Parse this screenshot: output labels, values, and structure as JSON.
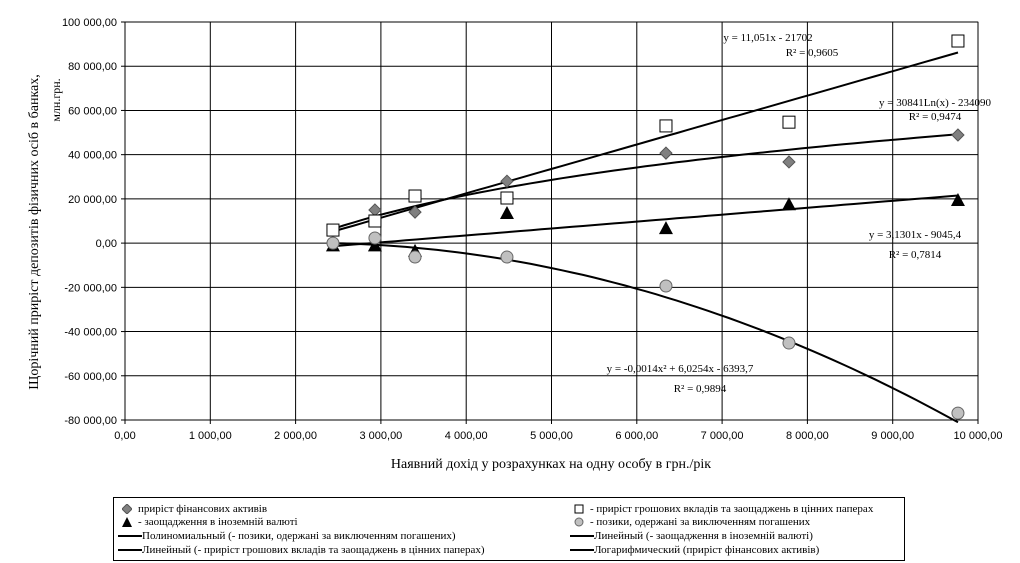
{
  "chart_data": {
    "type": "scatter",
    "xlabel": "Наявний дохід у розрахунках на одну особу в грн./рік",
    "ylabel": "Щорічний приріст депозитів фізичних осіб в банках,",
    "ylabel2": "млн.грн.",
    "xlim": [
      0,
      10000
    ],
    "ylim": [
      -80000,
      100000
    ],
    "xticks": [
      "0,00",
      "1 000,00",
      "2 000,00",
      "3 000,00",
      "4 000,00",
      "5 000,00",
      "6 000,00",
      "7 000,00",
      "8 000,00",
      "9 000,00",
      "10 000,00"
    ],
    "yticks": [
      "100 000,00",
      "80 000,00",
      "60 000,00",
      "40 000,00",
      "20 000,00",
      "0,00",
      "-20 000,00",
      "-40 000,00",
      "-60 000,00",
      "-80 000,00"
    ],
    "grid": true,
    "legend_position": "bottom",
    "x": [
      2438,
      2930,
      3400,
      4478,
      6342,
      7784,
      9765
    ],
    "series": [
      {
        "name": "приріст фінансових активів",
        "marker": "diamond",
        "color": "#808080",
        "values": [
          0,
          15000,
          14000,
          28000,
          40700,
          36700,
          48900
        ]
      },
      {
        "name": "- приріст грошових вкладів та заощаджень в цінних паперах",
        "marker": "square",
        "color": "#ffffff",
        "values": [
          5900,
          10000,
          21300,
          20400,
          53000,
          54700,
          91400
        ]
      },
      {
        "name": "- заощадження в іноземній валюті",
        "marker": "triangle",
        "color": "#000000",
        "values": [
          -1000,
          -1000,
          -3500,
          13600,
          6800,
          17600,
          19500
        ]
      },
      {
        "name": "- позики, одержані за виключенням погашених",
        "marker": "circle",
        "color": "#c0c0c0",
        "values": [
          0,
          2300,
          -6300,
          -6300,
          -19400,
          -45200,
          -76900
        ]
      }
    ],
    "trendlines": [
      {
        "name": "Полиномиальный (- позики, одержані за виключенням погашених)",
        "kind": "poly",
        "coef": [
          -0.0014,
          6.0254,
          -6393.7
        ],
        "equation": "y = -0,0014x² + 6,0254x - 6393,7",
        "r2": "R² = 0,9894"
      },
      {
        "name": "Линейный (- заощадження в іноземній валюті)",
        "kind": "linear",
        "coef": [
          3.1301,
          -9045.4
        ],
        "equation": "y = 3,1301x - 9045,4",
        "r2": "R² = 0,7814"
      },
      {
        "name": "Линейный (- приріст грошових вкладів та заощаджень в цінних паперах)",
        "kind": "linear",
        "coef": [
          11.051,
          -21702
        ],
        "equation": "y = 11,051x - 21702",
        "r2": "R² = 0,9605"
      },
      {
        "name": "Логарифмический (приріст фінансових активів)",
        "kind": "log",
        "coef": [
          30841,
          -234090
        ],
        "equation": "y = 30841Ln(x) - 234090",
        "r2": "R² = 0,9474"
      }
    ]
  }
}
